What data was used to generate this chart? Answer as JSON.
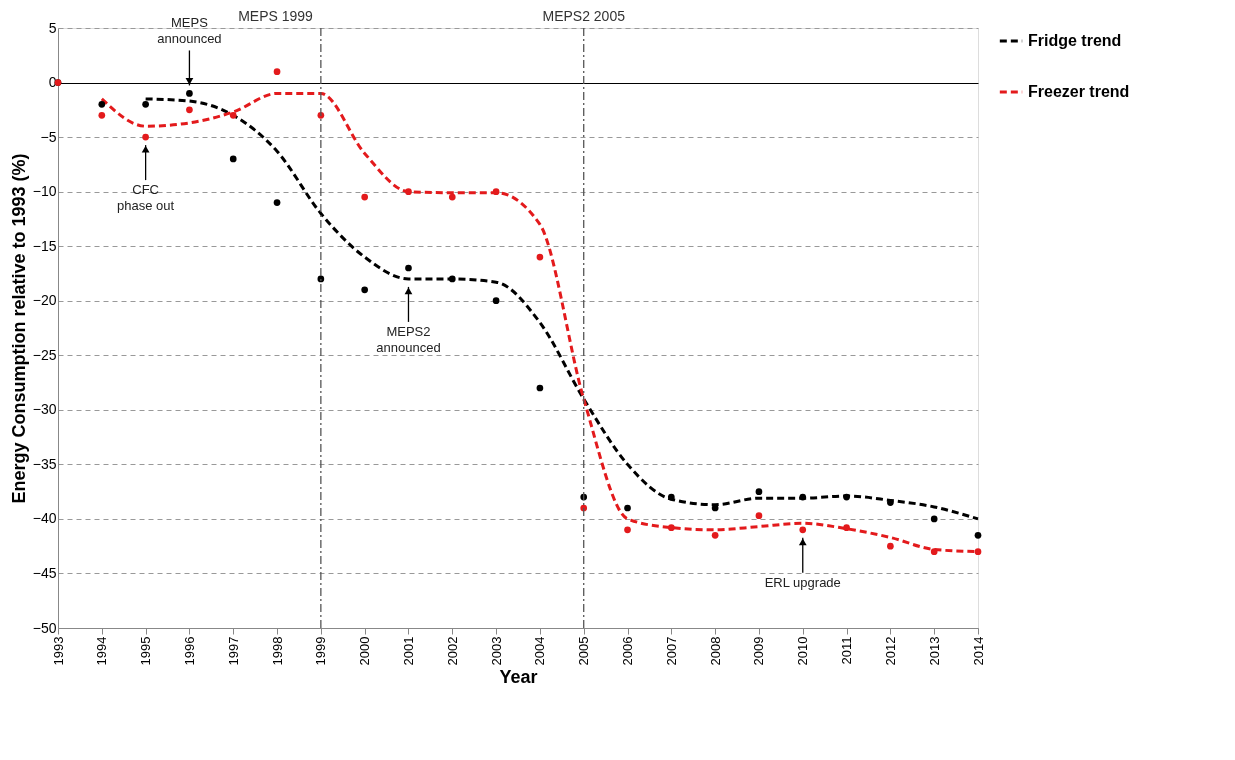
{
  "chart_data": {
    "type": "scatter",
    "xlabel": "Year",
    "ylabel": "Energy Consumption relative to 1993 (%)",
    "x": [
      1993,
      1994,
      1995,
      1996,
      1997,
      1998,
      1999,
      2000,
      2001,
      2002,
      2003,
      2004,
      2005,
      2006,
      2007,
      2008,
      2009,
      2010,
      2011,
      2012,
      2013,
      2014
    ],
    "series": [
      {
        "type": "scatter",
        "color": "#000000",
        "marker": "circle",
        "values": [
          0,
          -2,
          -2,
          -1,
          -7,
          -11,
          -18,
          -19,
          -17,
          -18,
          -20,
          -28,
          -38,
          -39,
          -38,
          -39,
          -37.5,
          -38,
          -38,
          -38.5,
          -40,
          -41.5
        ]
      },
      {
        "type": "scatter",
        "color": "#e31a1c",
        "marker": "circle",
        "values": [
          0,
          -3,
          -5,
          -2.5,
          -3,
          1,
          -3,
          -10.5,
          -10,
          -10.5,
          -10,
          -16,
          -39,
          -41,
          -40.8,
          -41.5,
          -39.7,
          -41,
          -40.8,
          -42.5,
          -43,
          -43
        ]
      },
      {
        "type": "line",
        "name": "Fridge trend",
        "color": "#000000",
        "line_style": "dashed",
        "x": [
          1995,
          1996,
          1997,
          1998,
          1999,
          2000,
          2001,
          2002,
          2003,
          2004,
          2005,
          2006,
          2007,
          2008,
          2009,
          2010,
          2011,
          2012,
          2013,
          2014
        ],
        "values": [
          -1.5,
          -1.7,
          -3,
          -6.3,
          -12,
          -16,
          -18,
          -18,
          -18.3,
          -22,
          -29,
          -35,
          -38.2,
          -38.7,
          -38.1,
          -38.1,
          -37.9,
          -38.3,
          -38.9,
          -40
        ]
      },
      {
        "type": "line",
        "name": "Freezer trend",
        "color": "#e31a1c",
        "line_style": "dashed",
        "x": [
          1994,
          1995,
          1996,
          1997,
          1998,
          1999,
          2000,
          2001,
          2002,
          2003,
          2004,
          2005,
          2006,
          2007,
          2008,
          2009,
          2010,
          2011,
          2012,
          2013,
          2014
        ],
        "values": [
          -1.5,
          -4,
          -3.7,
          -2.7,
          -1,
          -1,
          -6.5,
          -10,
          -10.1,
          -10.1,
          -13,
          -29,
          -40,
          -40.8,
          -41,
          -40.7,
          -40.4,
          -40.9,
          -41.7,
          -42.8,
          -43
        ]
      }
    ],
    "xlim": [
      1993,
      2014
    ],
    "xticks": [
      1993,
      1994,
      1995,
      1996,
      1997,
      1998,
      1999,
      2000,
      2001,
      2002,
      2003,
      2004,
      2005,
      2006,
      2007,
      2008,
      2009,
      2010,
      2011,
      2012,
      2013,
      2014
    ],
    "ylim": [
      -50,
      5
    ],
    "yticks": [
      -50,
      -45,
      -40,
      -35,
      -30,
      -25,
      -20,
      -15,
      -10,
      -5,
      0,
      5
    ],
    "grid": "y",
    "legend": "right",
    "ref_lines": [
      {
        "axis": "x",
        "value": 1999,
        "label": "MEPS 1999",
        "color": "#555555",
        "line_style": "dashdot"
      },
      {
        "axis": "x",
        "value": 2005,
        "label": "MEPS2 2005",
        "color": "#555555",
        "line_style": "dashdot"
      }
    ],
    "annotations": [
      {
        "text": "MEPS\nannounced",
        "x": 1996,
        "y": -1
      },
      {
        "text": "CFC\nphase out",
        "x": 1995,
        "y": -5
      },
      {
        "text": "MEPS2\nannounced",
        "x": 2001,
        "y": -18
      },
      {
        "text": "ERL upgrade",
        "x": 2010,
        "y": -41
      }
    ]
  }
}
